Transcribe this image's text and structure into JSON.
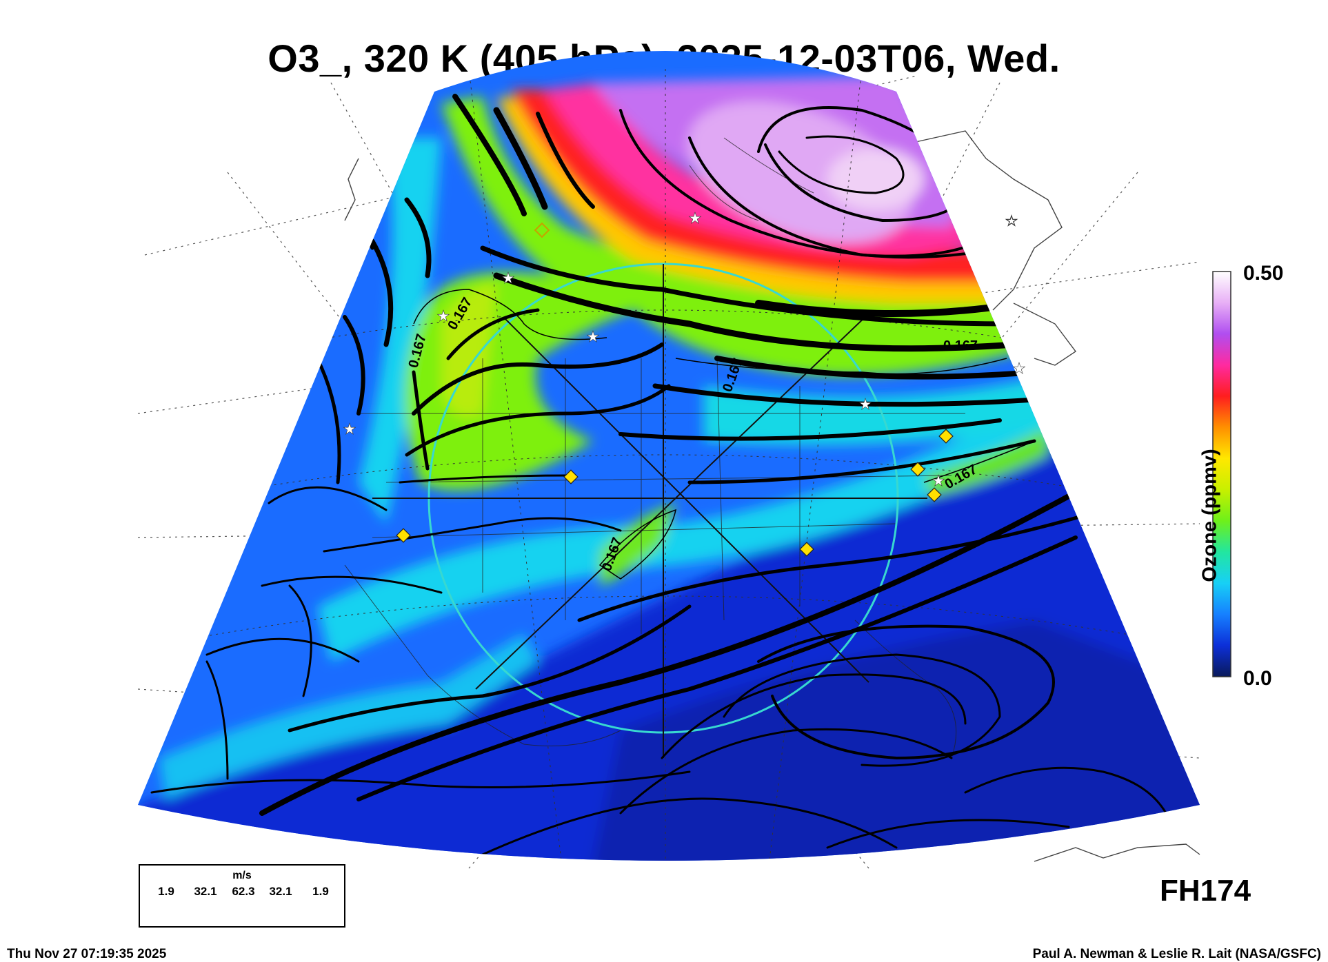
{
  "title": "O3_, 320 K (405 hPa), 2025-12-03T06, Wed.",
  "colorbar": {
    "label": "Ozone (ppmv)",
    "max_label": "0.50",
    "min_label": "0.0",
    "gradient": [
      "#0a1a5a",
      "#0c2fd8",
      "#1680ff",
      "#17d0f6",
      "#22e6a0",
      "#6ef01a",
      "#c8f000",
      "#ffe800",
      "#ff9000",
      "#ff1e1e",
      "#ff2aa0",
      "#b04ef0",
      "#e8b0f6",
      "#ffffff"
    ]
  },
  "contour_labels": [
    "0.167",
    "0.167",
    "0.167",
    "0.167",
    "0.167",
    "0.167"
  ],
  "wind_legend": {
    "unit": "m/s",
    "values": [
      "1.9",
      "32.1",
      "62.3",
      "32.1",
      "1.9"
    ]
  },
  "forecast_hour": "FH174",
  "timestamp": "Thu Nov 27 07:19:35 2025",
  "credit": "Paul A. Newman & Leslie R. Lait (NASA/GSFC)",
  "map_colors": {
    "deep_blue": "#0b2bd3",
    "blue": "#1a70ff",
    "cyan": "#18d2f0",
    "green": "#7ef010",
    "red": "#ff1e20",
    "magenta": "#ff2aa0",
    "purple": "#c470f2",
    "range_ring": "#38d8d0"
  }
}
